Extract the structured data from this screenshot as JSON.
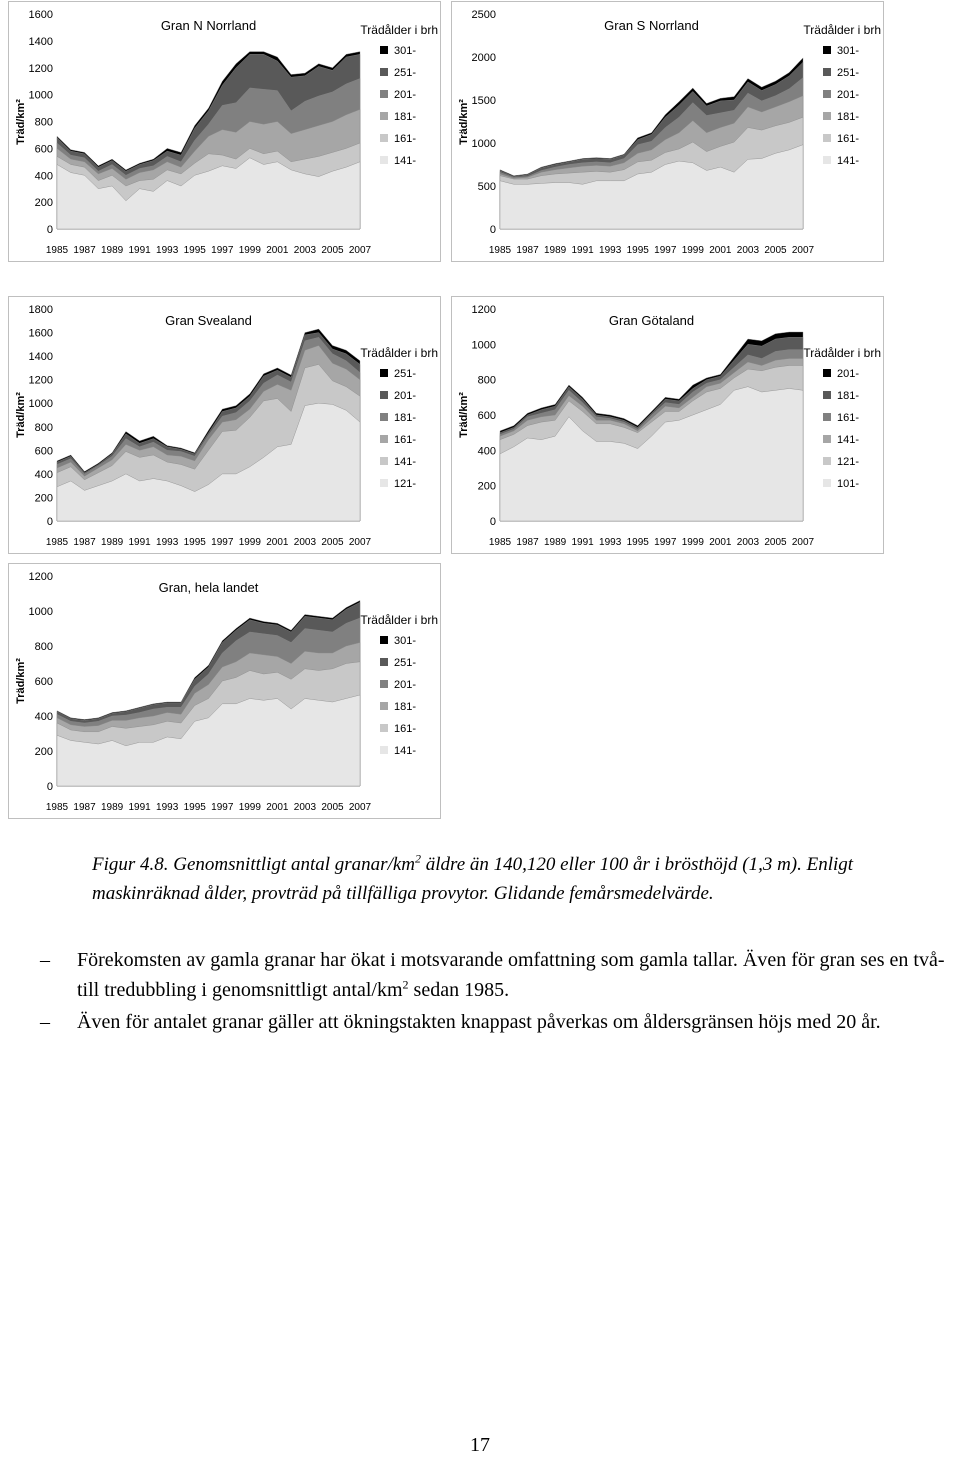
{
  "caption": {
    "label": "Figur 4.8.",
    "text_a": " Genomsnittligt antal granar/km",
    "sup": "2",
    "text_b": " äldre än 140,120 eller 100 år i brösthöjd (1,3 m). Enligt maskinräknad ålder, provträd på tillfälliga provytor. Glidande femårsmedelvärde."
  },
  "bullets": [
    {
      "dash": "–",
      "text_a": "Förekomsten av gamla granar har ökat i motsvarande omfattning som gamla tallar. Även för gran ses en två- till tredubbling i genomsnittligt antal/km",
      "sup": "2",
      "text_b": " sedan 1985."
    },
    {
      "dash": "–",
      "text_a": "Även för antalet granar gäller att ökningstakten knappast påverkas om åldersgränsen höjs med 20 år.",
      "sup": "",
      "text_b": ""
    }
  ],
  "page_number": "17",
  "chart_data": [
    {
      "type": "area",
      "title": "Gran N Norrland",
      "ylabel": "Träd/km²",
      "legend_title": "Trädålder i brh",
      "legend_placement": "right",
      "ylim": [
        0,
        1600
      ],
      "yticks": [
        "0",
        "200",
        "400",
        "600",
        "800",
        "1000",
        "1200",
        "1400",
        "1600"
      ],
      "x_tick_labels": [
        "1985",
        "1987",
        "1989",
        "1991",
        "1993",
        "1995",
        "1997",
        "1999",
        "2001",
        "2003",
        "2005",
        "2007"
      ],
      "x_start": 1985,
      "x_end": 2007,
      "grid": false,
      "series": [
        {
          "name": "301-",
          "color": "#000000",
          "values": [
            690,
            590,
            570,
            470,
            520,
            440,
            490,
            520,
            600,
            570,
            770,
            900,
            1100,
            1230,
            1320,
            1320,
            1280,
            1150,
            1160,
            1230,
            1200,
            1300,
            1320
          ]
        },
        {
          "name": "251-",
          "color": "#595959",
          "values": [
            680,
            580,
            560,
            460,
            510,
            430,
            480,
            510,
            580,
            550,
            750,
            880,
            1070,
            1200,
            1300,
            1300,
            1250,
            1130,
            1140,
            1210,
            1180,
            1280,
            1300
          ]
        },
        {
          "name": "201-",
          "color": "#808080",
          "values": [
            640,
            550,
            530,
            430,
            480,
            400,
            450,
            470,
            540,
            500,
            660,
            780,
            920,
            940,
            1050,
            1040,
            1030,
            880,
            950,
            990,
            1020,
            1080,
            1120
          ]
        },
        {
          "name": "181-",
          "color": "#a6a6a6",
          "values": [
            600,
            520,
            500,
            410,
            450,
            370,
            420,
            440,
            500,
            460,
            580,
            690,
            740,
            720,
            800,
            780,
            800,
            710,
            740,
            770,
            800,
            850,
            890
          ]
        },
        {
          "name": "161-",
          "color": "#c8c8c8",
          "values": [
            540,
            480,
            460,
            360,
            400,
            320,
            360,
            370,
            440,
            410,
            490,
            560,
            550,
            520,
            600,
            560,
            580,
            500,
            520,
            540,
            570,
            600,
            640
          ]
        },
        {
          "name": "141-",
          "color": "#e6e6e6",
          "values": [
            480,
            420,
            400,
            300,
            320,
            210,
            300,
            280,
            360,
            320,
            400,
            430,
            470,
            450,
            530,
            480,
            500,
            440,
            410,
            390,
            430,
            460,
            500
          ]
        }
      ]
    },
    {
      "type": "area",
      "title": "Gran S Norrland",
      "ylabel": "Träd/km²",
      "legend_title": "Trädålder i brh",
      "legend_placement": "right",
      "ylim": [
        0,
        2500
      ],
      "yticks": [
        "0",
        "500",
        "1000",
        "1500",
        "2000",
        "2500"
      ],
      "x_tick_labels": [
        "1985",
        "1987",
        "1989",
        "1991",
        "1993",
        "1995",
        "1997",
        "1999",
        "2001",
        "2003",
        "2005",
        "2007"
      ],
      "x_start": 1985,
      "x_end": 2007,
      "grid": false,
      "series": [
        {
          "name": "301-",
          "color": "#000000",
          "values": [
            690,
            620,
            640,
            720,
            760,
            790,
            820,
            830,
            820,
            870,
            1060,
            1120,
            1330,
            1480,
            1640,
            1460,
            1520,
            1540,
            1750,
            1650,
            1720,
            1820,
            1990
          ]
        },
        {
          "name": "251-",
          "color": "#595959",
          "values": [
            680,
            610,
            630,
            710,
            750,
            780,
            810,
            820,
            810,
            860,
            1040,
            1100,
            1300,
            1440,
            1600,
            1430,
            1490,
            1500,
            1710,
            1610,
            1680,
            1780,
            1940
          ]
        },
        {
          "name": "201-",
          "color": "#808080",
          "values": [
            660,
            600,
            610,
            680,
            720,
            750,
            770,
            780,
            770,
            820,
            980,
            1020,
            1180,
            1300,
            1470,
            1320,
            1350,
            1380,
            1580,
            1490,
            1550,
            1630,
            1760
          ]
        },
        {
          "name": "181-",
          "color": "#a6a6a6",
          "values": [
            640,
            590,
            600,
            660,
            690,
            710,
            730,
            740,
            730,
            770,
            880,
            920,
            1040,
            1120,
            1260,
            1120,
            1180,
            1230,
            1420,
            1360,
            1420,
            1480,
            1550
          ]
        },
        {
          "name": "161-",
          "color": "#c8c8c8",
          "values": [
            620,
            580,
            580,
            620,
            640,
            650,
            660,
            670,
            660,
            690,
            780,
            800,
            890,
            930,
            1010,
            900,
            960,
            1010,
            1180,
            1150,
            1200,
            1240,
            1300
          ]
        },
        {
          "name": "141-",
          "color": "#e6e6e6",
          "values": [
            560,
            520,
            520,
            530,
            540,
            540,
            520,
            560,
            560,
            560,
            640,
            660,
            750,
            790,
            770,
            680,
            720,
            660,
            810,
            820,
            880,
            920,
            980
          ]
        }
      ]
    },
    {
      "type": "area",
      "title": "Gran Svealand",
      "ylabel": "Träd/km²",
      "legend_title": "Trädålder i brh",
      "legend_placement": "right",
      "ylim": [
        0,
        1800
      ],
      "yticks": [
        "0",
        "200",
        "400",
        "600",
        "800",
        "1000",
        "1200",
        "1400",
        "1600",
        "1800"
      ],
      "x_tick_labels": [
        "1985",
        "1987",
        "1989",
        "1991",
        "1993",
        "1995",
        "1997",
        "1999",
        "2001",
        "2003",
        "2005",
        "2007"
      ],
      "x_start": 1985,
      "x_end": 2007,
      "grid": false,
      "series": [
        {
          "name": "251-",
          "color": "#000000",
          "values": [
            510,
            560,
            420,
            490,
            580,
            760,
            680,
            720,
            640,
            620,
            580,
            770,
            950,
            980,
            1080,
            1250,
            1300,
            1240,
            1600,
            1630,
            1490,
            1450,
            1360
          ]
        },
        {
          "name": "201-",
          "color": "#595959",
          "values": [
            500,
            550,
            410,
            480,
            570,
            740,
            660,
            700,
            630,
            610,
            570,
            750,
            930,
            960,
            1060,
            1230,
            1280,
            1220,
            1580,
            1600,
            1460,
            1420,
            1330
          ]
        },
        {
          "name": "181-",
          "color": "#808080",
          "values": [
            480,
            530,
            400,
            470,
            550,
            700,
            630,
            670,
            600,
            590,
            550,
            730,
            890,
            920,
            1020,
            1170,
            1240,
            1180,
            1530,
            1560,
            1420,
            1360,
            1260
          ]
        },
        {
          "name": "161-",
          "color": "#a6a6a6",
          "values": [
            450,
            500,
            380,
            450,
            520,
            650,
            600,
            630,
            560,
            550,
            510,
            690,
            840,
            860,
            950,
            1100,
            1160,
            1110,
            1450,
            1490,
            1340,
            1290,
            1200
          ]
        },
        {
          "name": "141-",
          "color": "#c8c8c8",
          "values": [
            410,
            460,
            350,
            410,
            470,
            590,
            540,
            560,
            500,
            480,
            440,
            600,
            760,
            770,
            880,
            1020,
            1040,
            930,
            1300,
            1330,
            1190,
            1140,
            1060
          ]
        },
        {
          "name": "121-",
          "color": "#e6e6e6",
          "values": [
            290,
            340,
            260,
            300,
            340,
            400,
            340,
            360,
            340,
            300,
            250,
            310,
            400,
            400,
            460,
            540,
            630,
            650,
            980,
            1000,
            990,
            940,
            840
          ]
        }
      ]
    },
    {
      "type": "area",
      "title": "Gran Götaland",
      "ylabel": "Träd/km²",
      "legend_title": "Trädålder i brh",
      "legend_placement": "right",
      "ylim": [
        0,
        1200
      ],
      "yticks": [
        "0",
        "200",
        "400",
        "600",
        "800",
        "1000",
        "1200"
      ],
      "x_tick_labels": [
        "1985",
        "1987",
        "1989",
        "1991",
        "1993",
        "1995",
        "1997",
        "1999",
        "2001",
        "2003",
        "2005",
        "2007"
      ],
      "x_start": 1985,
      "x_end": 2007,
      "grid": false,
      "series": [
        {
          "name": "201-",
          "color": "#000000",
          "values": [
            510,
            540,
            610,
            640,
            660,
            770,
            700,
            610,
            600,
            580,
            540,
            620,
            700,
            690,
            770,
            810,
            830,
            930,
            1030,
            1020,
            1060,
            1070,
            1070
          ]
        },
        {
          "name": "181-",
          "color": "#595959",
          "values": [
            500,
            530,
            600,
            630,
            650,
            760,
            690,
            600,
            590,
            570,
            530,
            610,
            690,
            680,
            750,
            800,
            820,
            910,
            1000,
            990,
            1030,
            1040,
            1040
          ]
        },
        {
          "name": "161-",
          "color": "#808080",
          "values": [
            490,
            520,
            590,
            610,
            630,
            740,
            670,
            590,
            580,
            560,
            520,
            600,
            670,
            660,
            730,
            780,
            800,
            870,
            940,
            920,
            960,
            970,
            970
          ]
        },
        {
          "name": "141-",
          "color": "#a6a6a6",
          "values": [
            480,
            510,
            570,
            590,
            600,
            710,
            650,
            570,
            570,
            550,
            510,
            580,
            650,
            640,
            700,
            760,
            780,
            840,
            900,
            880,
            910,
            920,
            920
          ]
        },
        {
          "name": "121-",
          "color": "#c8c8c8",
          "values": [
            460,
            490,
            540,
            560,
            570,
            680,
            620,
            550,
            550,
            530,
            500,
            560,
            620,
            620,
            680,
            730,
            750,
            810,
            860,
            850,
            870,
            880,
            880
          ]
        },
        {
          "name": "101-",
          "color": "#e6e6e6",
          "values": [
            380,
            420,
            470,
            460,
            480,
            590,
            510,
            450,
            450,
            440,
            410,
            480,
            560,
            570,
            600,
            630,
            660,
            740,
            760,
            730,
            740,
            750,
            740
          ]
        }
      ]
    },
    {
      "type": "area",
      "title": "Gran, hela landet",
      "ylabel": "Träd/km²",
      "legend_title": "Trädålder i brh",
      "legend_placement": "right",
      "ylim": [
        0,
        1200
      ],
      "yticks": [
        "0",
        "200",
        "400",
        "600",
        "800",
        "1000",
        "1200"
      ],
      "x_tick_labels": [
        "1985",
        "1987",
        "1989",
        "1991",
        "1993",
        "1995",
        "1997",
        "1999",
        "2001",
        "2003",
        "2005",
        "2007"
      ],
      "x_start": 1985,
      "x_end": 2007,
      "grid": false,
      "series": [
        {
          "name": "301-",
          "color": "#000000",
          "values": [
            430,
            390,
            380,
            390,
            420,
            430,
            450,
            470,
            480,
            480,
            620,
            690,
            830,
            900,
            960,
            940,
            930,
            890,
            980,
            970,
            960,
            1020,
            1060
          ]
        },
        {
          "name": "251-",
          "color": "#595959",
          "values": [
            425,
            385,
            375,
            385,
            415,
            425,
            445,
            465,
            475,
            475,
            610,
            680,
            820,
            890,
            950,
            930,
            920,
            880,
            970,
            960,
            950,
            1010,
            1050
          ]
        },
        {
          "name": "201-",
          "color": "#808080",
          "values": [
            410,
            370,
            360,
            370,
            400,
            405,
            420,
            440,
            450,
            450,
            570,
            640,
            760,
            830,
            880,
            870,
            860,
            820,
            900,
            890,
            880,
            930,
            960
          ]
        },
        {
          "name": "181-",
          "color": "#a6a6a6",
          "values": [
            390,
            350,
            340,
            345,
            375,
            375,
            390,
            400,
            420,
            410,
            530,
            580,
            680,
            710,
            760,
            750,
            740,
            700,
            770,
            760,
            760,
            800,
            820
          ]
        },
        {
          "name": "161-",
          "color": "#c8c8c8",
          "values": [
            360,
            320,
            310,
            310,
            340,
            330,
            340,
            350,
            370,
            360,
            460,
            500,
            600,
            620,
            660,
            640,
            650,
            610,
            670,
            660,
            670,
            700,
            710
          ]
        },
        {
          "name": "141-",
          "color": "#e6e6e6",
          "values": [
            290,
            260,
            250,
            240,
            260,
            230,
            250,
            250,
            280,
            270,
            370,
            390,
            470,
            470,
            500,
            490,
            500,
            440,
            500,
            490,
            480,
            500,
            520
          ]
        }
      ]
    }
  ]
}
